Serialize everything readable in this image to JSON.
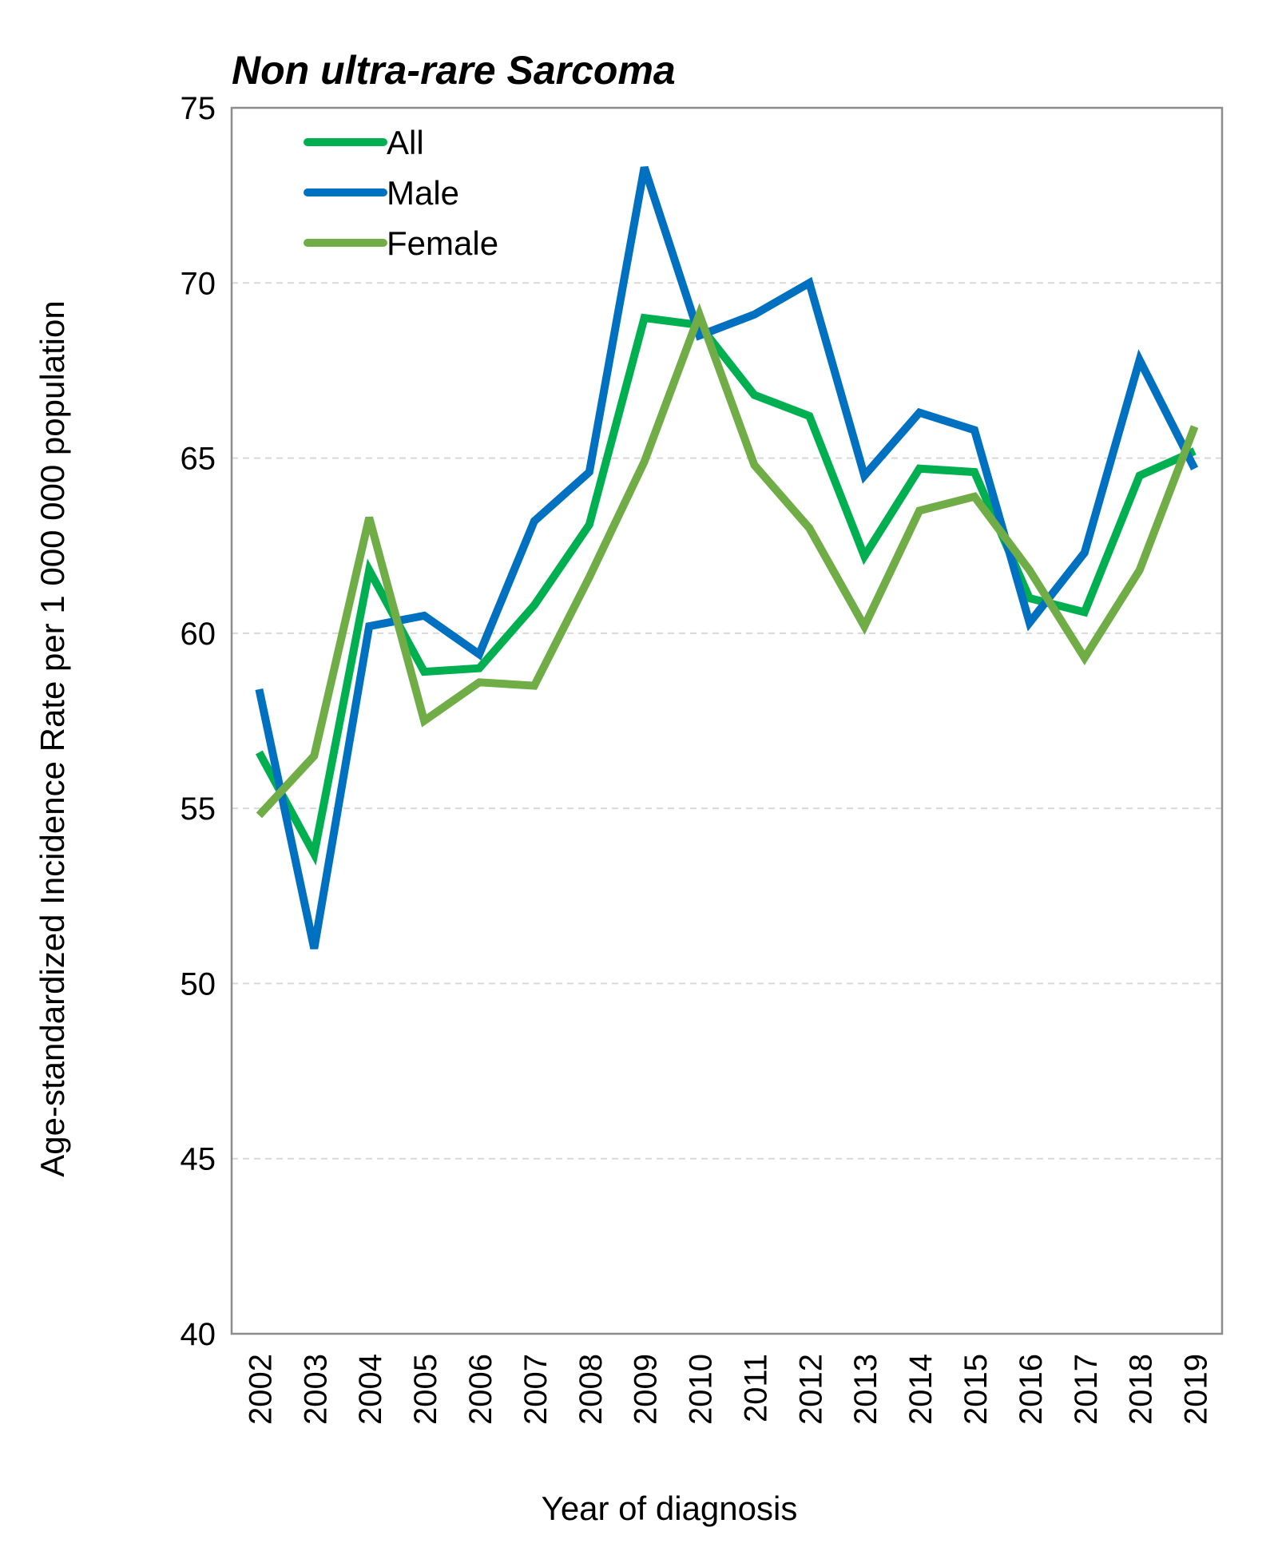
{
  "chart_data": {
    "type": "line",
    "title": "Non ultra-rare Sarcoma",
    "xlabel": "Year of diagnosis",
    "ylabel": "Age-standardized Incidence Rate per 1 000 000 population",
    "categories": [
      "2002",
      "2003",
      "2004",
      "2005",
      "2006",
      "2007",
      "2008",
      "2009",
      "2010",
      "2011",
      "2012",
      "2013",
      "2014",
      "2015",
      "2016",
      "2017",
      "2018",
      "2019"
    ],
    "ylim": [
      40,
      75
    ],
    "yticks": [
      "40",
      "45",
      "50",
      "55",
      "60",
      "65",
      "70",
      "75"
    ],
    "grid": "horizontal dashed",
    "legend_position": "top-left",
    "series": [
      {
        "name": "All",
        "color": "#00B050",
        "values": [
          56.6,
          53.7,
          61.8,
          58.9,
          59.0,
          60.8,
          63.1,
          69.0,
          68.8,
          66.8,
          66.2,
          62.2,
          64.7,
          64.6,
          61.0,
          60.6,
          64.5,
          65.2
        ]
      },
      {
        "name": "Male",
        "color": "#0070C0",
        "values": [
          58.4,
          51.0,
          60.2,
          60.5,
          59.4,
          63.2,
          64.6,
          73.3,
          68.5,
          69.1,
          70.0,
          64.5,
          66.3,
          65.8,
          60.3,
          62.3,
          67.8,
          64.7
        ]
      },
      {
        "name": "Female",
        "color": "#70AD47",
        "values": [
          54.8,
          56.5,
          63.3,
          57.5,
          58.6,
          58.5,
          61.6,
          64.9,
          69.1,
          64.8,
          63.0,
          60.2,
          63.5,
          63.9,
          61.8,
          59.3,
          61.8,
          65.9
        ]
      }
    ]
  }
}
